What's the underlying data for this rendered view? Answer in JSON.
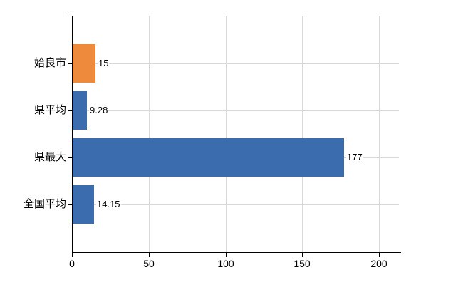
{
  "chart_data": {
    "type": "bar",
    "orientation": "horizontal",
    "title": "",
    "categories": [
      "姶良市",
      "県平均",
      "県最大",
      "全国平均"
    ],
    "values": [
      15,
      9.28,
      177,
      14.15
    ],
    "value_labels": [
      "15",
      "9.28",
      "177",
      "14.15"
    ],
    "series": [
      {
        "name": "姶良市",
        "value": 15,
        "color": "#ED8A3B"
      },
      {
        "name": "県平均",
        "value": 9.28,
        "color": "#3B6DAE"
      },
      {
        "name": "県最大",
        "value": 177,
        "color": "#3B6DAE"
      },
      {
        "name": "全国平均",
        "value": 14.15,
        "color": "#3B6DAE"
      }
    ],
    "bar_colors": [
      "#ED8A3B",
      "#3B6DAE",
      "#3B6DAE",
      "#3B6DAE"
    ],
    "x_tick_labels": [
      "0",
      "50",
      "100",
      "150",
      "200"
    ],
    "x_tick_values": [
      0,
      50,
      100,
      150,
      200
    ],
    "xlabel": "",
    "ylabel": "",
    "xlim": [
      0,
      213
    ],
    "grid": true,
    "legend_position": "none",
    "colors": {
      "bar_blue": "#3B6DAE",
      "bar_orange": "#ED8A3B",
      "gridline": "#D9D9D9",
      "axis": "#000000",
      "text": "#000000",
      "background": "#FFFFFF"
    }
  }
}
